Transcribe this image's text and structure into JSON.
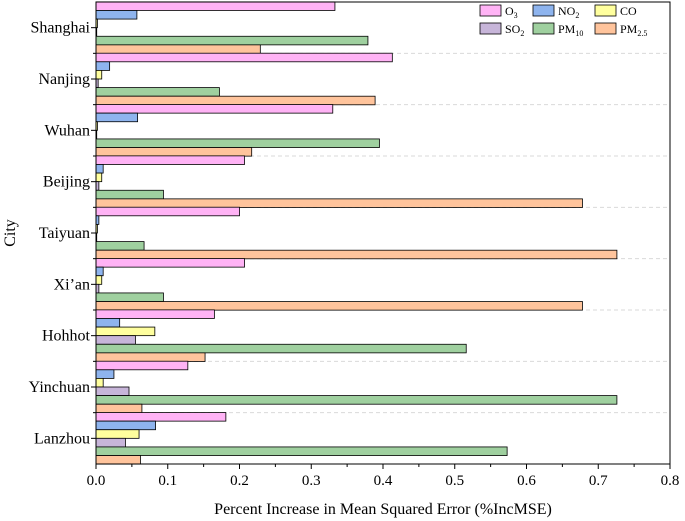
{
  "chart_data": {
    "type": "bar",
    "orientation": "horizontal",
    "title": "",
    "xlabel": "Percent Increase in Mean Squared Error (%IncMSE)",
    "ylabel": "City",
    "xlim": [
      0,
      0.8
    ],
    "xticks": [
      "0.0",
      "0.1",
      "0.2",
      "0.3",
      "0.4",
      "0.5",
      "0.6",
      "0.7",
      "0.8"
    ],
    "categories": [
      "Shanghai",
      "Nanjing",
      "Wuhan",
      "Beijing",
      "Taiyuan",
      "Xi’an",
      "Hohhot",
      "Yinchuan",
      "Lanzhou"
    ],
    "legend_position": "top-right",
    "series": [
      {
        "name": "O3",
        "label_main": "O",
        "label_sub": "3",
        "color": "#FFB3F5",
        "values": [
          0.333,
          0.413,
          0.33,
          0.207,
          0.2,
          0.207,
          0.165,
          0.128,
          0.181
        ]
      },
      {
        "name": "NO2",
        "label_main": "NO",
        "label_sub": "2",
        "color": "#8EB4EE",
        "values": [
          0.057,
          0.019,
          0.058,
          0.01,
          0.004,
          0.01,
          0.033,
          0.025,
          0.083
        ]
      },
      {
        "name": "CO",
        "label_main": "CO",
        "label_sub": "",
        "color": "#FFFF9E",
        "values": [
          0.002,
          0.008,
          0.002,
          0.008,
          0.002,
          0.008,
          0.082,
          0.01,
          0.06
        ]
      },
      {
        "name": "SO2",
        "label_main": "SO",
        "label_sub": "2",
        "color": "#C7B5D9",
        "values": [
          0.001,
          0.003,
          0.001,
          0.004,
          0.001,
          0.004,
          0.055,
          0.046,
          0.041
        ]
      },
      {
        "name": "PM10",
        "label_main": "PM",
        "label_sub": "10",
        "color": "#9FD09F",
        "values": [
          0.379,
          0.172,
          0.395,
          0.094,
          0.067,
          0.094,
          0.516,
          0.726,
          0.573
        ]
      },
      {
        "name": "PM2.5",
        "label_main": "PM",
        "label_sub": "2.5",
        "color": "#FFC49C",
        "values": [
          0.229,
          0.389,
          0.217,
          0.678,
          0.726,
          0.678,
          0.152,
          0.064,
          0.062
        ]
      }
    ]
  }
}
